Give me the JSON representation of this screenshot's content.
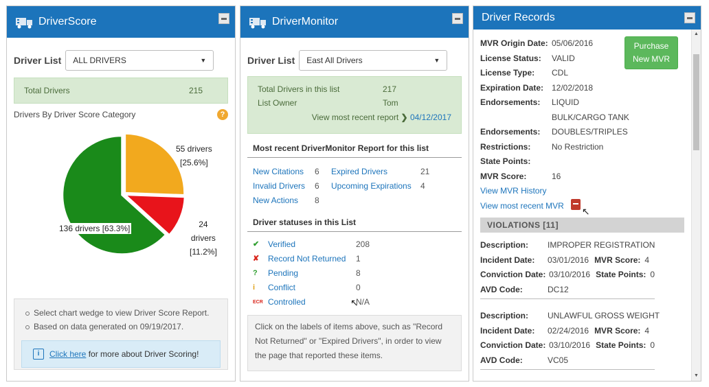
{
  "driverscore": {
    "title": "DriverScore",
    "driver_list_label": "Driver List",
    "driver_list_value": "ALL DRIVERS",
    "total_label": "Total Drivers",
    "total_value": "215",
    "category_label": "Drivers By Driver Score Category",
    "help_glyph": "?",
    "pie": {
      "slices": [
        {
          "label": "136 drivers [63.3%]",
          "value": 136,
          "percent": 63.3,
          "color": "#1a8a1a"
        },
        {
          "label_line1": "55 drivers",
          "label_line2": "[25.6%]",
          "value": 55,
          "percent": 25.6,
          "color": "#f2a91e"
        },
        {
          "label_line1": "24",
          "label_line2": "drivers",
          "label_line3": "[11.2%]",
          "value": 24,
          "percent": 11.2,
          "color": "#e8141b"
        }
      ]
    },
    "notes": [
      "Select chart wedge to view Driver Score Report.",
      "Based on data generated on 09/19/2017."
    ],
    "help_link": "Click here",
    "help_text": " for more about Driver Scoring!"
  },
  "drivermonitor": {
    "title": "DriverMonitor",
    "driver_list_label": "Driver List",
    "driver_list_value": "East All Drivers",
    "total_label": "Total Drivers in this list",
    "total_value": "217",
    "owner_label": "List Owner",
    "owner_value": "Tom",
    "recent_label": "View most recent report",
    "recent_date": "04/12/2017",
    "report_section_title": "Most recent DriverMonitor Report for this list",
    "report_items": [
      {
        "left_label": "New Citations",
        "left_value": "6",
        "right_label": "Expired Drivers",
        "right_value": "21"
      },
      {
        "left_label": "Invalid Drivers",
        "left_value": "6",
        "right_label": "Upcoming Expirations",
        "right_value": "4"
      },
      {
        "left_label": "New Actions",
        "left_value": "8",
        "right_label": "",
        "right_value": ""
      }
    ],
    "status_section_title": "Driver statuses in this List",
    "statuses": [
      {
        "label": "Verified",
        "value": "208",
        "icon": "verified-icon",
        "glyph": "✔",
        "color": "#2e9e2e"
      },
      {
        "label": "Record Not Returned",
        "value": "1",
        "icon": "not-returned-icon",
        "glyph": "✘",
        "color": "#d9261c"
      },
      {
        "label": "Pending",
        "value": "8",
        "icon": "pending-icon",
        "glyph": "?",
        "color": "#2e9e2e"
      },
      {
        "label": "Conflict",
        "value": "0",
        "icon": "conflict-icon",
        "glyph": "i",
        "color": "#e0a31c"
      },
      {
        "label": "Controlled",
        "value": "N/A",
        "icon": "controlled-icon",
        "glyph": "ECR",
        "color": "#d9261c"
      }
    ],
    "note": "Click on the labels of items above, such as \"Record Not Returned\" or \"Expired Drivers\", in order to view the page that reported these items."
  },
  "driverrecords": {
    "title": "Driver Records",
    "purchase_button": [
      "Purchase",
      "New MVR"
    ],
    "fields": [
      {
        "label": "MVR Origin Date:",
        "value": "05/06/2016"
      },
      {
        "label": "License Status:",
        "value": "VALID"
      },
      {
        "label": "License Type:",
        "value": "CDL"
      },
      {
        "label": "Expiration Date:",
        "value": "12/02/2018"
      },
      {
        "label": "Endorsements:",
        "value": "LIQUID"
      },
      {
        "label": "",
        "value": "BULK/CARGO TANK"
      },
      {
        "label": "Endorsements:",
        "value": "DOUBLES/TRIPLES"
      },
      {
        "label": "Restrictions:",
        "value": "No Restriction"
      },
      {
        "label": "State Points:",
        "value": ""
      },
      {
        "label": "MVR Score:",
        "value": "16"
      }
    ],
    "history_link": "View MVR History",
    "recent_mvr_link": "View most recent MVR",
    "violations_header": "VIOLATIONS [11]",
    "violations": [
      {
        "desc_label": "Description:",
        "desc": "IMPROPER REGISTRATION",
        "inc_label": "Incident Date:",
        "inc": "03/01/2016",
        "score_label": "MVR Score:",
        "score": "4",
        "conv_label": "Conviction Date:",
        "conv": "03/10/2016",
        "pts_label": "State Points:",
        "pts": "0",
        "avd_label": "AVD Code:",
        "avd": "DC12"
      },
      {
        "desc_label": "Description:",
        "desc": "UNLAWFUL GROSS WEIGHT",
        "inc_label": "Incident Date:",
        "inc": "02/24/2016",
        "score_label": "MVR Score:",
        "score": "4",
        "conv_label": "Conviction Date:",
        "conv": "03/10/2016",
        "pts_label": "State Points:",
        "pts": "0",
        "avd_label": "AVD Code:",
        "avd": "VC05"
      }
    ]
  }
}
